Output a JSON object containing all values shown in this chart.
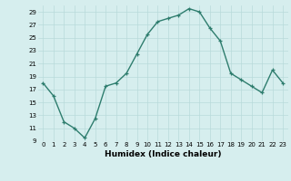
{
  "x": [
    0,
    1,
    2,
    3,
    4,
    5,
    6,
    7,
    8,
    9,
    10,
    11,
    12,
    13,
    14,
    15,
    16,
    17,
    18,
    19,
    20,
    21,
    22,
    23
  ],
  "y": [
    18,
    16,
    12,
    11,
    9.5,
    12.5,
    17.5,
    18,
    19.5,
    22.5,
    25.5,
    27.5,
    28,
    28.5,
    29.5,
    29,
    26.5,
    24.5,
    19.5,
    18.5,
    17.5,
    16.5,
    20,
    18
  ],
  "line_color": "#2e7d6e",
  "marker": "+",
  "background_color": "#d6eeee",
  "grid_color": "#b8dada",
  "xlabel": "Humidex (Indice chaleur)",
  "xlabel_fontsize": 6.5,
  "ylim": [
    9,
    30
  ],
  "xlim": [
    -0.5,
    23.5
  ],
  "yticks": [
    9,
    11,
    13,
    15,
    17,
    19,
    21,
    23,
    25,
    27,
    29
  ],
  "xticks": [
    0,
    1,
    2,
    3,
    4,
    5,
    6,
    7,
    8,
    9,
    10,
    11,
    12,
    13,
    14,
    15,
    16,
    17,
    18,
    19,
    20,
    21,
    22,
    23
  ],
  "tick_fontsize": 5.0,
  "linewidth": 1.0,
  "markersize": 3.5
}
